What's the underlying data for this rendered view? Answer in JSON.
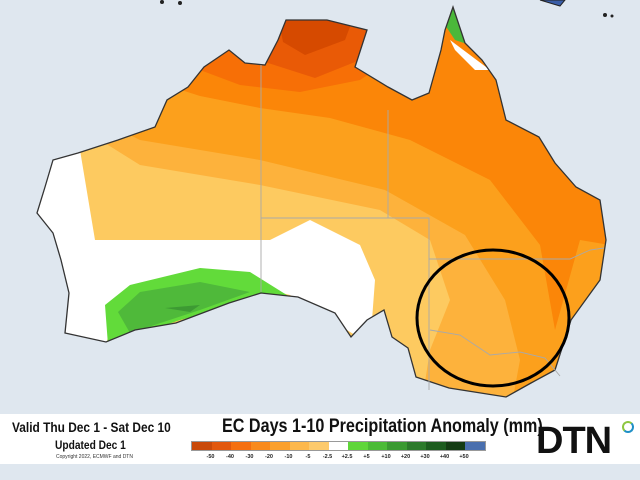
{
  "header": {
    "valid": "Valid Thu Dec 1 - Sat Dec 10",
    "updated": "Updated Dec 1",
    "copyright": "Copyright 2022, ECMWF and DTN",
    "title": "EC Days 1-10 Precipitation Anomaly (mm)"
  },
  "logo": "DTN",
  "legend": {
    "colors": [
      "#c94a0a",
      "#e2580e",
      "#f56f10",
      "#f98a1c",
      "#fba02c",
      "#fdb84c",
      "#fdca6c",
      "#ffffff",
      "#5fd63a",
      "#4bbb36",
      "#3a9a31",
      "#2c7a2b",
      "#1d5c1f",
      "#143c14",
      "#4a6fae"
    ],
    "ticks": [
      "-50",
      "-40",
      "-30",
      "-20",
      "-10",
      "-5",
      "-2.5",
      "+2.5",
      "+5",
      "+10",
      "+20",
      "+30",
      "+40",
      "+50"
    ]
  },
  "map": {
    "region": "Australia",
    "highlight": "southeast Australia circled"
  }
}
